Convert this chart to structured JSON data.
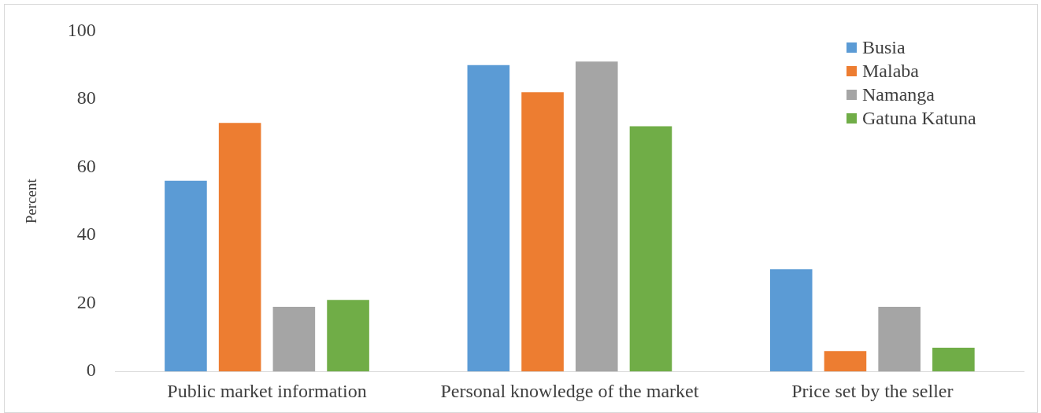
{
  "chart_data": {
    "type": "bar",
    "ylabel": "Percent",
    "categories": [
      "Public market information",
      "Personal knowledge of the market",
      "Price set by the seller"
    ],
    "series": [
      {
        "name": "Busia",
        "color": "#5b9bd5",
        "values": [
          56,
          90,
          30
        ]
      },
      {
        "name": "Malaba",
        "color": "#ed7d31",
        "values": [
          73,
          82,
          6
        ]
      },
      {
        "name": "Namanga",
        "color": "#a5a5a5",
        "values": [
          19,
          91,
          19
        ]
      },
      {
        "name": "Gatuna Katuna",
        "color": "#70ad47",
        "values": [
          21,
          72,
          7
        ]
      }
    ],
    "ylim": [
      0,
      100
    ],
    "yticks": [
      0,
      20,
      40,
      60,
      80,
      100
    ],
    "legend": "top right"
  }
}
